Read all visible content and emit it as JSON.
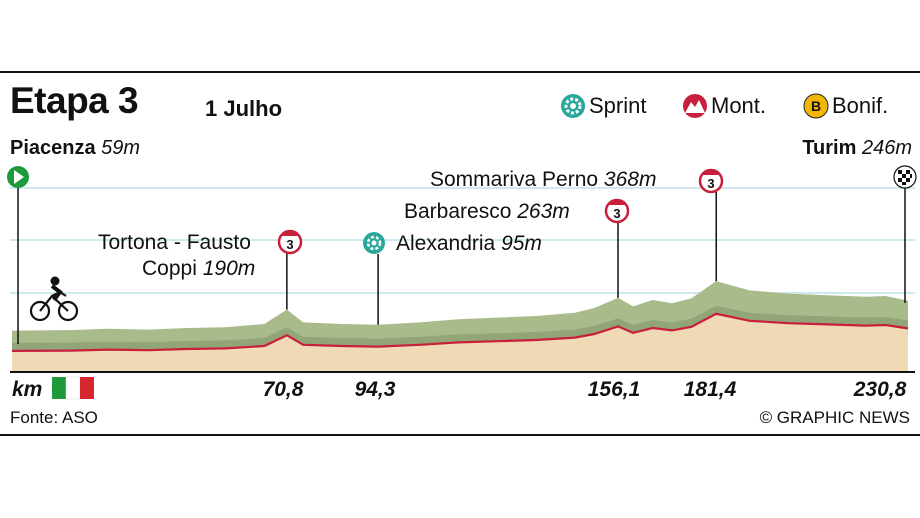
{
  "header": {
    "title": "Etapa 3",
    "date": "1 Julho"
  },
  "legend": {
    "items": [
      {
        "label": "Sprint",
        "icon": "sprint-icon",
        "color": "#2aa79b"
      },
      {
        "label": "Mont.",
        "icon": "mountain-icon",
        "color": "#c8203c"
      },
      {
        "label": "Bonif.",
        "icon": "bonus-icon",
        "badge": "B",
        "color": "#f2b705"
      }
    ]
  },
  "start": {
    "name": "Piacenza",
    "altitude": "59m"
  },
  "finish": {
    "name": "Turim",
    "altitude": "246m"
  },
  "waypoints": [
    {
      "name_line1": "Tortona - Fausto",
      "name_line2": "Coppi",
      "altitude": "190m",
      "type": "mountain",
      "category": "3",
      "km": "70,8"
    },
    {
      "name": "Alexandria",
      "altitude": "95m",
      "type": "sprint",
      "km": "94,3"
    },
    {
      "name": "Barbaresco",
      "altitude": "263m",
      "type": "mountain",
      "category": "3",
      "km": "156,1"
    },
    {
      "name": "Sommariva Perno",
      "altitude": "368m",
      "type": "mountain",
      "category": "3",
      "km": "181,4"
    }
  ],
  "axis": {
    "unit": "km",
    "finish_km": "230,8",
    "flag_colors": [
      "#1f9a3a",
      "#ffffff",
      "#d5262e"
    ]
  },
  "footer": {
    "source": "Fonte: ASO",
    "credit": "© GRAPHIC NEWS"
  },
  "colors": {
    "terrain": "#a9bb8a",
    "terrain_shadow": "#7f946a",
    "ground": "#f0d9b5",
    "route": "#c8203c",
    "grid": "#bfe3ea"
  },
  "chart_data": {
    "type": "area",
    "title": "Etapa 3",
    "xlabel": "km",
    "ylabel": "",
    "x_range": [
      0,
      230.8
    ],
    "points": [
      [
        0,
        59
      ],
      [
        15,
        62
      ],
      [
        25,
        70
      ],
      [
        35,
        65
      ],
      [
        45,
        75
      ],
      [
        55,
        80
      ],
      [
        65,
        100
      ],
      [
        70.8,
        190
      ],
      [
        75,
        110
      ],
      [
        85,
        100
      ],
      [
        94.3,
        95
      ],
      [
        105,
        110
      ],
      [
        115,
        130
      ],
      [
        125,
        140
      ],
      [
        135,
        150
      ],
      [
        145,
        170
      ],
      [
        150,
        200
      ],
      [
        156.1,
        263
      ],
      [
        160,
        210
      ],
      [
        165,
        250
      ],
      [
        170,
        230
      ],
      [
        175,
        260
      ],
      [
        181.4,
        368
      ],
      [
        190,
        310
      ],
      [
        200,
        290
      ],
      [
        210,
        280
      ],
      [
        220,
        270
      ],
      [
        225,
        275
      ],
      [
        230.8,
        246
      ]
    ]
  }
}
